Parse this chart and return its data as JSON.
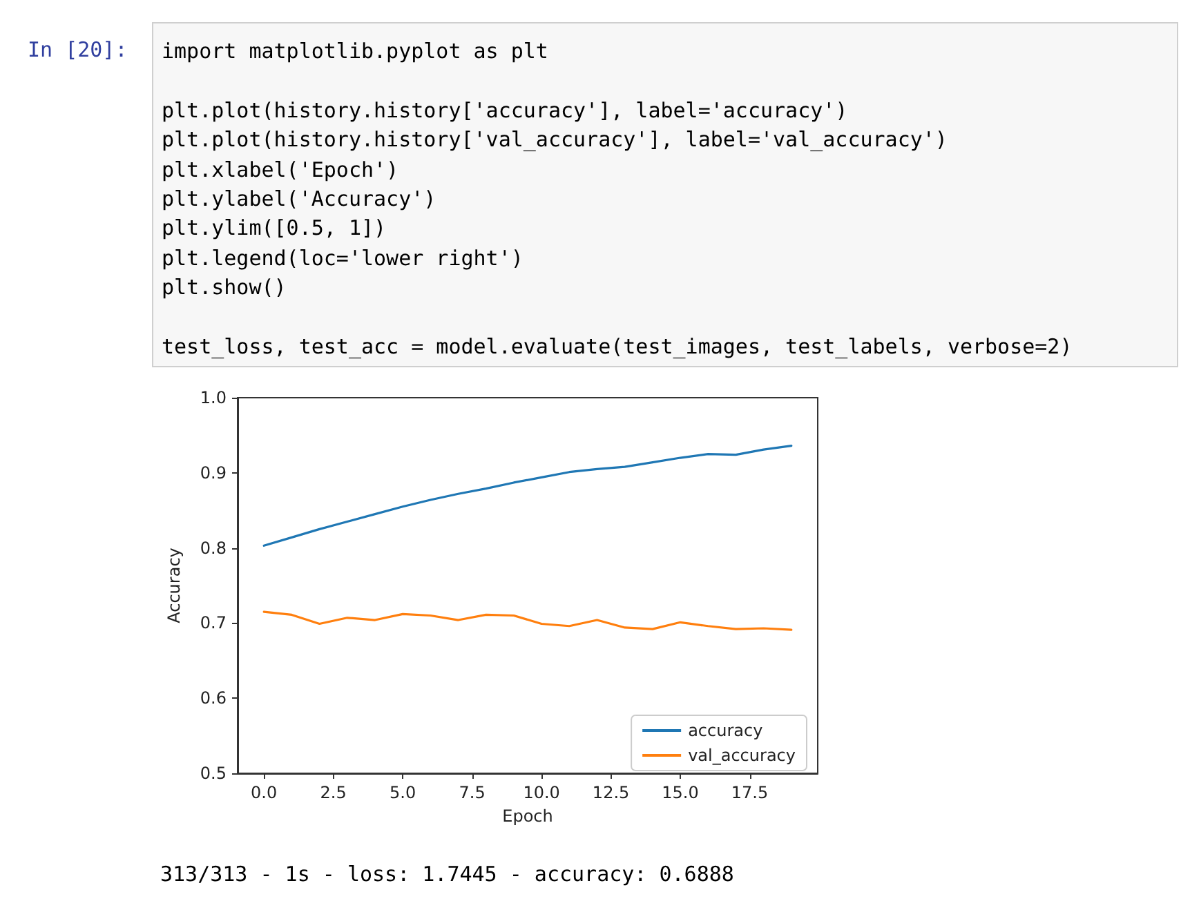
{
  "chart_data": {
    "type": "line",
    "xlabel": "Epoch",
    "ylabel": "Accuracy",
    "x": [
      0,
      1,
      2,
      3,
      4,
      5,
      6,
      7,
      8,
      9,
      10,
      11,
      12,
      13,
      14,
      15,
      16,
      17,
      18,
      19
    ],
    "series": [
      {
        "name": "accuracy",
        "color": "#1f77b4",
        "values": [
          0.803,
          0.814,
          0.825,
          0.835,
          0.845,
          0.855,
          0.864,
          0.872,
          0.879,
          0.887,
          0.894,
          0.901,
          0.905,
          0.908,
          0.914,
          0.92,
          0.925,
          0.924,
          0.931,
          0.936
        ]
      },
      {
        "name": "val_accuracy",
        "color": "#ff7f0e",
        "values": [
          0.715,
          0.711,
          0.699,
          0.707,
          0.704,
          0.712,
          0.71,
          0.704,
          0.711,
          0.71,
          0.699,
          0.696,
          0.704,
          0.694,
          0.692,
          0.701,
          0.696,
          0.692,
          0.693,
          0.691
        ]
      }
    ],
    "xlim": [
      -0.95,
      19.95
    ],
    "xticks": [
      {
        "value": 0,
        "label": "0.0"
      },
      2.5,
      {
        "value": 5,
        "label": "5.0"
      },
      7.5,
      {
        "value": 10,
        "label": "10.0"
      },
      12.5,
      {
        "value": 15,
        "label": "15.0"
      },
      17.5
    ],
    "ylim": [
      0.5,
      1.0
    ],
    "yticks": [
      0.5,
      0.6,
      0.7,
      0.8,
      0.9,
      {
        "value": 1,
        "label": "1.0"
      }
    ],
    "grid": false,
    "legend": "bottom right",
    "marker": "none",
    "line_style": "solid",
    "annotations": [
      "In [20]:",
      "import matplotlib.pyplot as plt",
      "plt.plot(history.history['accuracy'], label='accuracy')",
      "plt.plot(history.history['val_accuracy'], label='val_accuracy')",
      "plt.xlabel('Epoch')",
      "plt.ylabel('Accuracy')",
      "plt.ylim([0.5, 1])",
      "plt.legend(loc='lower right')",
      "plt.show()",
      "test_loss, test_acc = model.evaluate(test_images, test_labels, verbose=2)",
      "313/313 - 1s - loss: 1.7445 - accuracy: 0.6888"
    ]
  }
}
